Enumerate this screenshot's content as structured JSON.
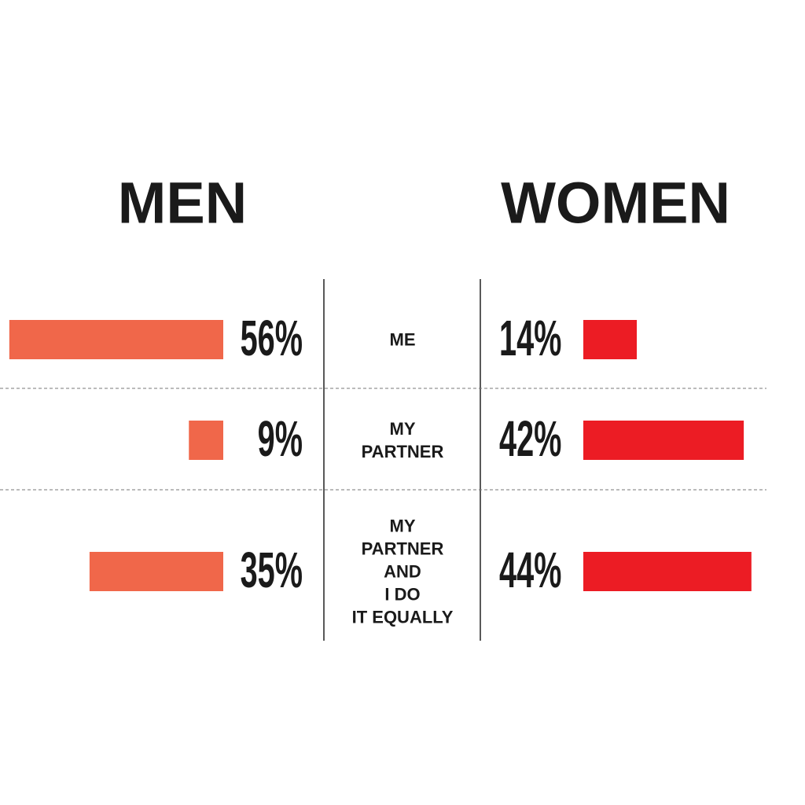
{
  "chart_data": {
    "type": "butterfly",
    "categories": [
      "ME",
      "MY\nPARTNER",
      "MY\nPARTNER\nAND\nI DO\nIT EQUALLY"
    ],
    "series": [
      {
        "name": "MEN",
        "color": "#f0674a",
        "values": [
          56,
          9,
          35
        ],
        "value_labels": [
          "56%",
          "9%",
          "35%"
        ]
      },
      {
        "name": "WOMEN",
        "color": "#ec1c24",
        "values": [
          14,
          42,
          44
        ],
        "value_labels": [
          "14%",
          "42%",
          "44%"
        ]
      }
    ]
  }
}
